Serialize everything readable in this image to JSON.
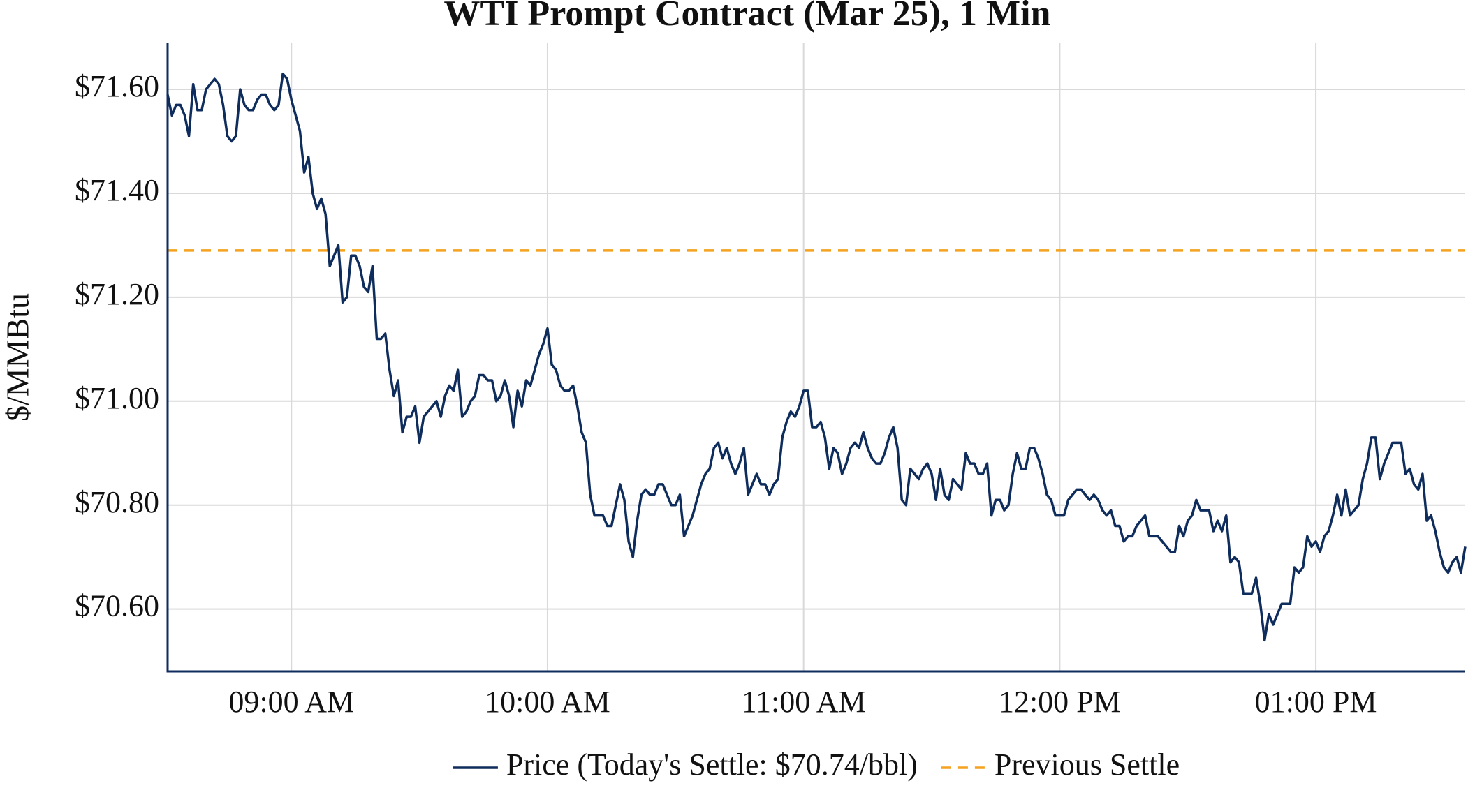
{
  "chart_data": {
    "type": "line",
    "title": "WTI Prompt Contract (Mar 25), 1 Min",
    "ylabel": "$/MMBtu",
    "xlim": [
      "08:31",
      "13:35"
    ],
    "xticks": [
      {
        "value": "09:00",
        "label": "09:00 AM"
      },
      {
        "value": "10:00",
        "label": "10:00 AM"
      },
      {
        "value": "11:00",
        "label": "11:00 AM"
      },
      {
        "value": "12:00",
        "label": "12:00 PM"
      },
      {
        "value": "13:00",
        "label": "01:00 PM"
      }
    ],
    "ylim": [
      70.48,
      71.69
    ],
    "yticks": [
      {
        "value": 70.6,
        "label": "$70.60"
      },
      {
        "value": 70.8,
        "label": "$70.80"
      },
      {
        "value": 71.0,
        "label": "$71.00"
      },
      {
        "value": 71.2,
        "label": "$71.20"
      },
      {
        "value": 71.4,
        "label": "$71.40"
      },
      {
        "value": 71.6,
        "label": "$71.60"
      }
    ],
    "grid": true,
    "legend": "bottom",
    "x": [
      "08:31",
      "08:32",
      "08:33",
      "08:34",
      "08:35",
      "08:36",
      "08:37",
      "08:38",
      "08:39",
      "08:40",
      "08:41",
      "08:42",
      "08:43",
      "08:44",
      "08:45",
      "08:46",
      "08:47",
      "08:48",
      "08:49",
      "08:50",
      "08:51",
      "08:52",
      "08:53",
      "08:54",
      "08:55",
      "08:56",
      "08:57",
      "08:58",
      "08:59",
      "09:00",
      "09:01",
      "09:02",
      "09:03",
      "09:04",
      "09:05",
      "09:06",
      "09:07",
      "09:08",
      "09:09",
      "09:10",
      "09:11",
      "09:12",
      "09:13",
      "09:14",
      "09:15",
      "09:16",
      "09:17",
      "09:18",
      "09:19",
      "09:20",
      "09:21",
      "09:22",
      "09:23",
      "09:24",
      "09:25",
      "09:26",
      "09:27",
      "09:28",
      "09:29",
      "09:30",
      "09:31",
      "09:32",
      "09:33",
      "09:34",
      "09:35",
      "09:36",
      "09:37",
      "09:38",
      "09:39",
      "09:40",
      "09:41",
      "09:42",
      "09:43",
      "09:44",
      "09:45",
      "09:46",
      "09:47",
      "09:48",
      "09:49",
      "09:50",
      "09:51",
      "09:52",
      "09:53",
      "09:54",
      "09:55",
      "09:56",
      "09:57",
      "09:58",
      "09:59",
      "10:00",
      "10:01",
      "10:02",
      "10:03",
      "10:04",
      "10:05",
      "10:06",
      "10:07",
      "10:08",
      "10:09",
      "10:10",
      "10:11",
      "10:12",
      "10:13",
      "10:14",
      "10:15",
      "10:16",
      "10:17",
      "10:18",
      "10:19",
      "10:20",
      "10:21",
      "10:22",
      "10:23",
      "10:24",
      "10:25",
      "10:26",
      "10:27",
      "10:28",
      "10:29",
      "10:30",
      "10:31",
      "10:32",
      "10:33",
      "10:34",
      "10:35",
      "10:36",
      "10:37",
      "10:38",
      "10:39",
      "10:40",
      "10:41",
      "10:42",
      "10:43",
      "10:44",
      "10:45",
      "10:46",
      "10:47",
      "10:48",
      "10:49",
      "10:50",
      "10:51",
      "10:52",
      "10:53",
      "10:54",
      "10:55",
      "10:56",
      "10:57",
      "10:58",
      "10:59",
      "11:00",
      "11:01",
      "11:02",
      "11:03",
      "11:04",
      "11:05",
      "11:06",
      "11:07",
      "11:08",
      "11:09",
      "11:10",
      "11:11",
      "11:12",
      "11:13",
      "11:14",
      "11:15",
      "11:16",
      "11:17",
      "11:18",
      "11:19",
      "11:20",
      "11:21",
      "11:22",
      "11:23",
      "11:24",
      "11:25",
      "11:26",
      "11:27",
      "11:28",
      "11:29",
      "11:30",
      "11:31",
      "11:32",
      "11:33",
      "11:34",
      "11:35",
      "11:36",
      "11:37",
      "11:38",
      "11:39",
      "11:40",
      "11:41",
      "11:42",
      "11:43",
      "11:44",
      "11:45",
      "11:46",
      "11:47",
      "11:48",
      "11:49",
      "11:50",
      "11:51",
      "11:52",
      "11:53",
      "11:54",
      "11:55",
      "11:56",
      "11:57",
      "11:58",
      "11:59",
      "12:00",
      "12:01",
      "12:02",
      "12:03",
      "12:04",
      "12:05",
      "12:06",
      "12:07",
      "12:08",
      "12:09",
      "12:10",
      "12:11",
      "12:12",
      "12:13",
      "12:14",
      "12:15",
      "12:16",
      "12:17",
      "12:18",
      "12:19",
      "12:20",
      "12:21",
      "12:22",
      "12:23",
      "12:24",
      "12:25",
      "12:26",
      "12:27",
      "12:28",
      "12:29",
      "12:30",
      "12:31",
      "12:32",
      "12:33",
      "12:34",
      "12:35",
      "12:36",
      "12:37",
      "12:38",
      "12:39",
      "12:40",
      "12:41",
      "12:42",
      "12:43",
      "12:44",
      "12:45",
      "12:46",
      "12:47",
      "12:48",
      "12:49",
      "12:50",
      "12:51",
      "12:52",
      "12:53",
      "12:54",
      "12:55",
      "12:56",
      "12:57",
      "12:58",
      "12:59",
      "13:00",
      "13:01",
      "13:02",
      "13:03",
      "13:04",
      "13:05",
      "13:06",
      "13:07",
      "13:08",
      "13:09",
      "13:10",
      "13:11",
      "13:12",
      "13:13",
      "13:14",
      "13:15",
      "13:16",
      "13:17",
      "13:18",
      "13:19",
      "13:20",
      "13:21",
      "13:22",
      "13:23",
      "13:24",
      "13:25",
      "13:26",
      "13:27",
      "13:28",
      "13:29",
      "13:30",
      "13:31",
      "13:32",
      "13:33",
      "13:34",
      "13:35"
    ],
    "series": [
      {
        "name": "Price (Today's Settle: $70.74/bbl)",
        "color": "#0f2d5c",
        "values": [
          71.59,
          71.55,
          71.57,
          71.57,
          71.55,
          71.51,
          71.61,
          71.56,
          71.56,
          71.6,
          71.61,
          71.62,
          71.61,
          71.57,
          71.51,
          71.5,
          71.51,
          71.6,
          71.57,
          71.56,
          71.56,
          71.58,
          71.59,
          71.59,
          71.57,
          71.56,
          71.57,
          71.63,
          71.62,
          71.58,
          71.55,
          71.52,
          71.44,
          71.47,
          71.4,
          71.37,
          71.39,
          71.36,
          71.26,
          71.28,
          71.3,
          71.19,
          71.2,
          71.28,
          71.28,
          71.26,
          71.22,
          71.21,
          71.26,
          71.12,
          71.12,
          71.13,
          71.06,
          71.01,
          71.04,
          70.94,
          70.97,
          70.97,
          70.99,
          70.92,
          70.97,
          70.98,
          70.99,
          71.0,
          70.97,
          71.01,
          71.03,
          71.02,
          71.06,
          70.97,
          70.98,
          71.0,
          71.01,
          71.05,
          71.05,
          71.04,
          71.04,
          71.0,
          71.01,
          71.04,
          71.01,
          70.95,
          71.02,
          70.99,
          71.04,
          71.03,
          71.06,
          71.09,
          71.11,
          71.14,
          71.07,
          71.06,
          71.03,
          71.02,
          71.02,
          71.03,
          70.99,
          70.94,
          70.92,
          70.82,
          70.78,
          70.78,
          70.78,
          70.76,
          70.76,
          70.8,
          70.84,
          70.81,
          70.73,
          70.7,
          70.77,
          70.82,
          70.83,
          70.82,
          70.82,
          70.84,
          70.84,
          70.82,
          70.8,
          70.8,
          70.82,
          70.74,
          70.76,
          70.78,
          70.81,
          70.84,
          70.86,
          70.87,
          70.91,
          70.92,
          70.89,
          70.91,
          70.88,
          70.86,
          70.88,
          70.91,
          70.82,
          70.84,
          70.86,
          70.84,
          70.84,
          70.82,
          70.84,
          70.85,
          70.93,
          70.96,
          70.98,
          70.97,
          70.99,
          71.02,
          71.02,
          70.95,
          70.95,
          70.96,
          70.93,
          70.87,
          70.91,
          70.9,
          70.86,
          70.88,
          70.91,
          70.92,
          70.91,
          70.94,
          70.91,
          70.89,
          70.88,
          70.88,
          70.9,
          70.93,
          70.95,
          70.91,
          70.81,
          70.8,
          70.87,
          70.86,
          70.85,
          70.87,
          70.88,
          70.86,
          70.81,
          70.87,
          70.82,
          70.81,
          70.85,
          70.84,
          70.83,
          70.9,
          70.88,
          70.88,
          70.86,
          70.86,
          70.88,
          70.78,
          70.81,
          70.81,
          70.79,
          70.8,
          70.86,
          70.9,
          70.87,
          70.87,
          70.91,
          70.91,
          70.89,
          70.86,
          70.82,
          70.81,
          70.78,
          70.78,
          70.78,
          70.81,
          70.82,
          70.83,
          70.83,
          70.82,
          70.81,
          70.82,
          70.81,
          70.79,
          70.78,
          70.79,
          70.76,
          70.76,
          70.73,
          70.74,
          70.74,
          70.76,
          70.77,
          70.78,
          70.74,
          70.74,
          70.74,
          70.73,
          70.72,
          70.71,
          70.71,
          70.76,
          70.74,
          70.77,
          70.78,
          70.81,
          70.79,
          70.79,
          70.79,
          70.75,
          70.77,
          70.75,
          70.78,
          70.69,
          70.7,
          70.69,
          70.63,
          70.63,
          70.63,
          70.66,
          70.61,
          70.54,
          70.59,
          70.57,
          70.59,
          70.61,
          70.61,
          70.61,
          70.68,
          70.67,
          70.68,
          70.74,
          70.72,
          70.73,
          70.71,
          70.74,
          70.75,
          70.78,
          70.82,
          70.78,
          70.83,
          70.78,
          70.79,
          70.8,
          70.85,
          70.88,
          70.93,
          70.93,
          70.85,
          70.88,
          70.9,
          70.92,
          70.92,
          70.92,
          70.86,
          70.87,
          70.84,
          70.83,
          70.86,
          70.77,
          70.78,
          70.75,
          70.71,
          70.68,
          70.67,
          70.69,
          70.7,
          70.67,
          70.72
        ]
      }
    ],
    "hlines": [
      {
        "name": "Previous Settle",
        "color": "#f4a21f",
        "value": 71.29,
        "dashed": true
      }
    ]
  }
}
